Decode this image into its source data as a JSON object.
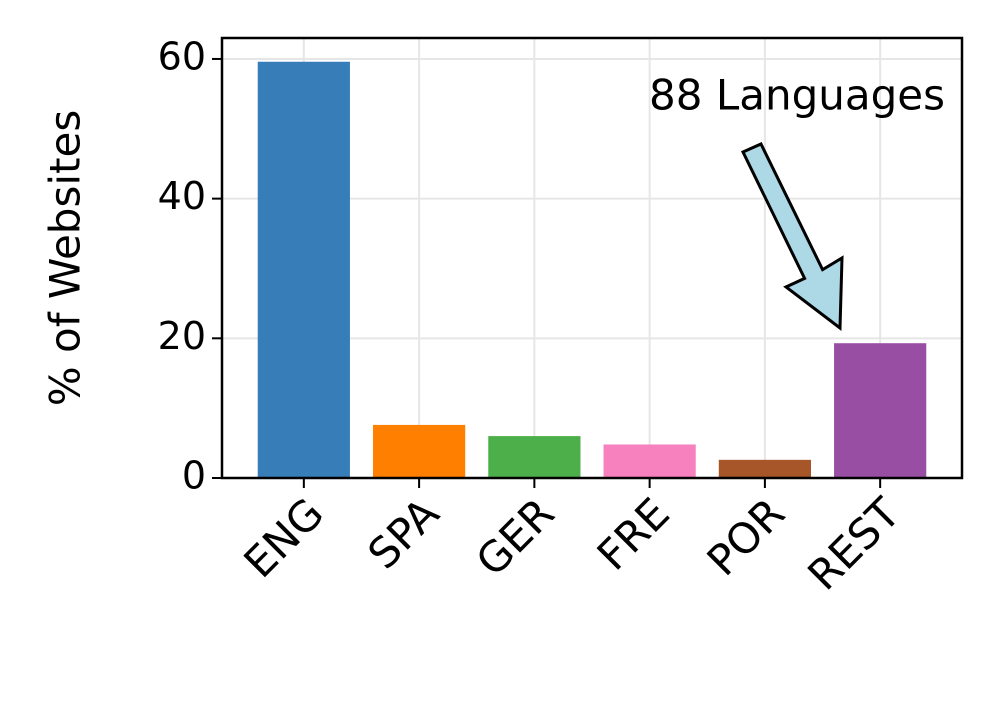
{
  "chart_data": {
    "type": "bar",
    "y_label": "% of Websites",
    "annotation": "88 Languages",
    "categories": [
      "ENG",
      "SPA",
      "GER",
      "FRE",
      "POR",
      "REST"
    ],
    "values": [
      59.6,
      7.6,
      6.0,
      4.8,
      2.6,
      19.3
    ],
    "colors": [
      "#377eb8",
      "#ff7f00",
      "#4daf4a",
      "#f781bf",
      "#a65628",
      "#984ea3"
    ],
    "ylim": [
      0,
      63
    ],
    "yticks": [
      0,
      20,
      40,
      60
    ],
    "grid": true
  }
}
